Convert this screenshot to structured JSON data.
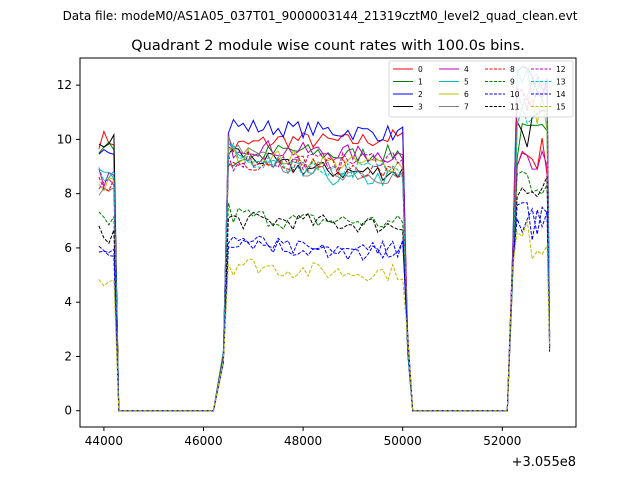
{
  "figure": {
    "suptitle": "Data file: modeM0/AS1A05_037T01_9000003144_21319cztM0_level2_quad_clean.evt"
  },
  "chart_data": {
    "type": "line",
    "title": "Quadrant 2 module wise count rates with 100.0s bins.",
    "xlabel": "",
    "ylabel": "",
    "x_offset_label": "+3.055e8",
    "xlim": [
      43520,
      53480
    ],
    "ylim": [
      -0.6,
      13.0
    ],
    "xticks": [
      44000,
      46000,
      48000,
      50000,
      52000
    ],
    "yticks": [
      0,
      2,
      4,
      6,
      8,
      10,
      12
    ],
    "grid": false,
    "legend_position": "top-right",
    "legend_columns": 4,
    "segments": [
      {
        "x_start": 43900,
        "x_end": 44200
      },
      {
        "x_start": 46500,
        "x_end": 50000
      },
      {
        "x_start": 52300,
        "x_end": 52900
      }
    ],
    "zero_gaps": [
      [
        44300,
        46200
      ],
      [
        50200,
        52100
      ]
    ],
    "series": [
      {
        "name": "0",
        "color": "#ff0000",
        "dash": "solid",
        "levels": [
          10.0,
          9.7,
          10.0,
          9.9,
          10.1,
          9.4
        ]
      },
      {
        "name": "1",
        "color": "#008000",
        "dash": "solid",
        "levels": [
          9.6,
          9.2,
          9.6,
          9.4,
          9.5,
          9.9
        ]
      },
      {
        "name": "2",
        "color": "#0000ff",
        "dash": "solid",
        "levels": [
          9.8,
          10.5,
          10.4,
          10.3,
          10.2,
          11.9
        ]
      },
      {
        "name": "3",
        "color": "#000000",
        "dash": "solid",
        "levels": [
          9.9,
          9.6,
          9.0,
          8.8,
          8.8,
          10.4
        ]
      },
      {
        "name": "4",
        "color": "#bf00bf",
        "dash": "solid",
        "levels": [
          8.6,
          9.8,
          9.6,
          9.5,
          9.4,
          9.7
        ]
      },
      {
        "name": "5",
        "color": "#00bfbf",
        "dash": "solid",
        "levels": [
          8.6,
          9.4,
          9.0,
          8.5,
          8.6,
          12.0
        ]
      },
      {
        "name": "6",
        "color": "#bfbf00",
        "dash": "solid",
        "levels": [
          8.3,
          9.4,
          9.3,
          9.1,
          9.1,
          11.0
        ]
      },
      {
        "name": "7",
        "color": "#808080",
        "dash": "solid",
        "levels": [
          8.0,
          9.7,
          9.0,
          8.8,
          8.6,
          11.4
        ]
      },
      {
        "name": "8",
        "color": "#ff0000",
        "dash": "dashed",
        "levels": [
          8.4,
          9.1,
          9.2,
          9.0,
          8.7,
          11.2
        ]
      },
      {
        "name": "9",
        "color": "#008000",
        "dash": "dashed",
        "levels": [
          7.0,
          7.3,
          7.0,
          7.0,
          6.9,
          8.6
        ]
      },
      {
        "name": "10",
        "color": "#0000ff",
        "dash": "dashed",
        "levels": [
          5.8,
          6.4,
          6.0,
          5.8,
          6.0,
          7.0
        ]
      },
      {
        "name": "11",
        "color": "#000000",
        "dash": "dashed",
        "levels": [
          6.5,
          7.0,
          7.0,
          6.9,
          6.8,
          8.0
        ]
      },
      {
        "name": "12",
        "color": "#bf00bf",
        "dash": "dashed",
        "levels": [
          8.2,
          9.3,
          9.2,
          9.2,
          9.4,
          11.6
        ]
      },
      {
        "name": "13",
        "color": "#00bfbf",
        "dash": "dashed",
        "levels": [
          8.7,
          9.4,
          9.0,
          8.9,
          8.9,
          11.2
        ]
      },
      {
        "name": "14",
        "color": "#0000ff",
        "dash": "dashed",
        "levels": [
          5.7,
          6.4,
          6.0,
          5.8,
          6.0,
          7.0
        ]
      },
      {
        "name": "15",
        "color": "#bfbf00",
        "dash": "dashed",
        "levels": [
          4.9,
          5.5,
          5.2,
          5.1,
          5.1,
          6.3
        ]
      }
    ],
    "levels_note_keys": [
      "seg1",
      "seg2_start",
      "seg2_mid",
      "seg2_late",
      "seg2_end",
      "seg3"
    ]
  }
}
